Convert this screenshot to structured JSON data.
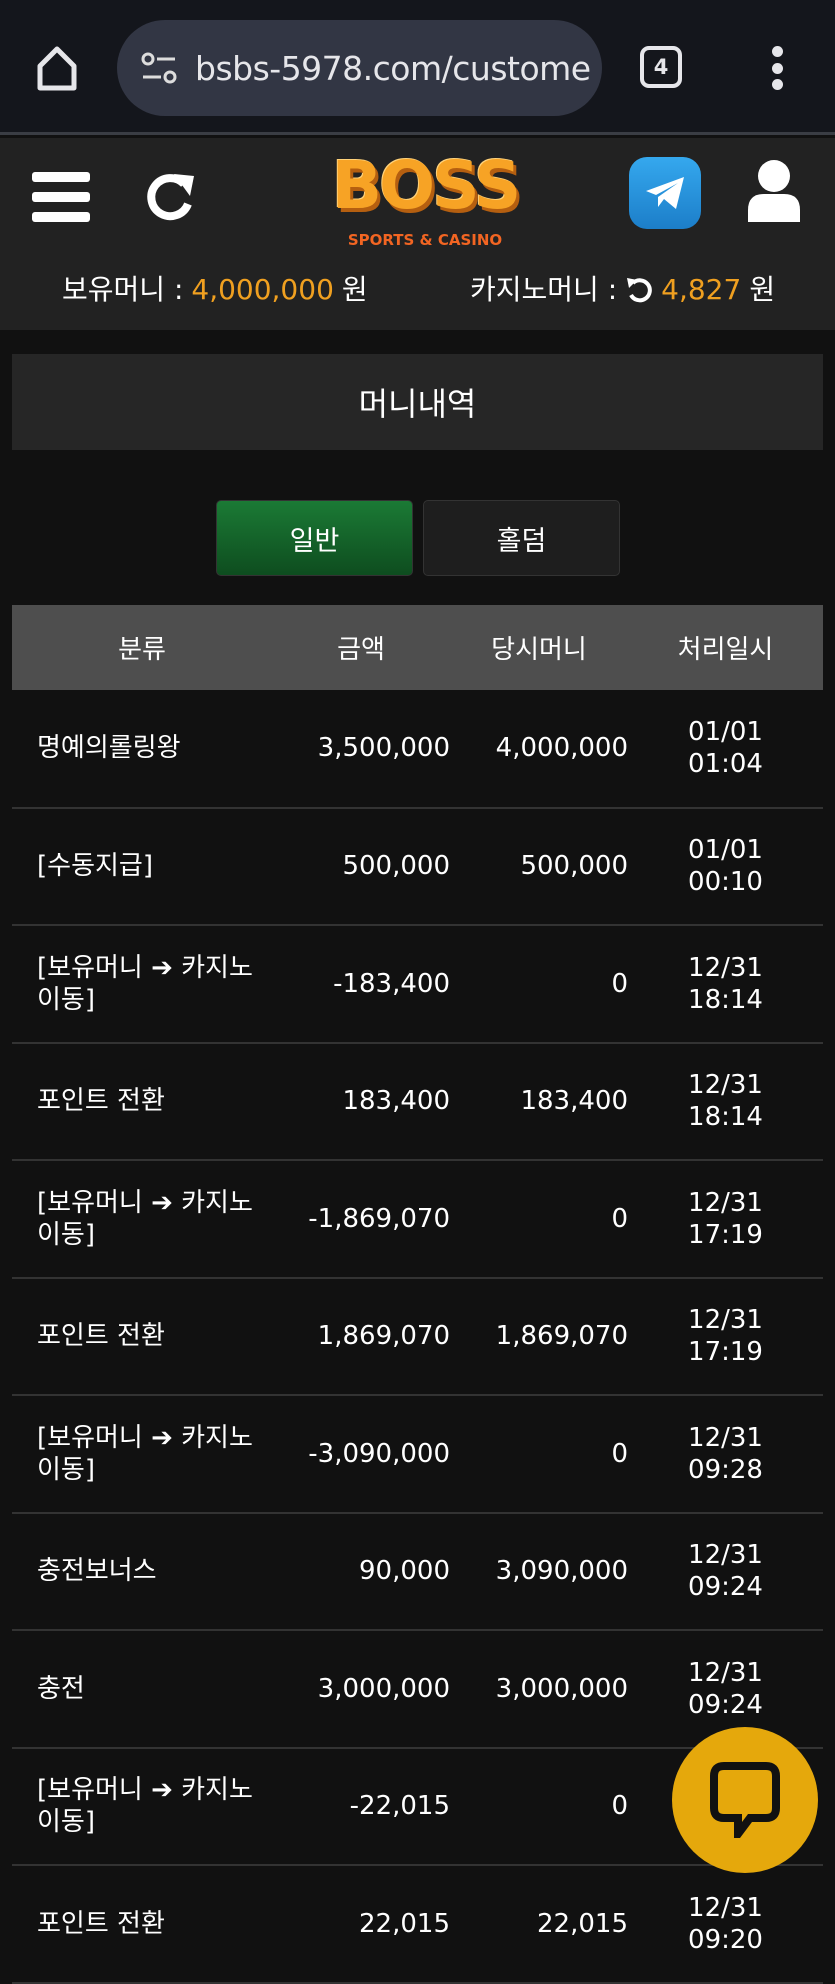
{
  "browser": {
    "url": "bsbs-5978.com/custome",
    "tab_count": "4"
  },
  "header": {
    "logo_text": "BOSS",
    "logo_sub": "SPORTS & CASINO",
    "hold_money_label": "보유머니 :",
    "hold_money_value": "4,000,000",
    "hold_money_unit": "원",
    "casino_money_label": "카지노머니 :",
    "casino_money_value": "4,827",
    "casino_money_unit": "원"
  },
  "page_title": "머니내역",
  "tabs": [
    {
      "label": "일반",
      "active": true
    },
    {
      "label": "홀덤",
      "active": false
    }
  ],
  "table": {
    "headers": [
      "분류",
      "금액",
      "당시머니",
      "처리일시"
    ],
    "rows": [
      [
        "명예의롤링왕",
        "3,500,000",
        "4,000,000",
        "01/01",
        "01:04"
      ],
      [
        "[수동지급]",
        "500,000",
        "500,000",
        "01/01",
        "00:10"
      ],
      [
        "[보유머니 ➔ 카지노 이동]",
        "-183,400",
        "0",
        "12/31",
        "18:14"
      ],
      [
        "포인트 전환",
        "183,400",
        "183,400",
        "12/31",
        "18:14"
      ],
      [
        "[보유머니 ➔ 카지노 이동]",
        "-1,869,070",
        "0",
        "12/31",
        "17:19"
      ],
      [
        "포인트 전환",
        "1,869,070",
        "1,869,070",
        "12/31",
        "17:19"
      ],
      [
        "[보유머니 ➔ 카지노 이동]",
        "-3,090,000",
        "0",
        "12/31",
        "09:28"
      ],
      [
        "충전보너스",
        "90,000",
        "3,090,000",
        "12/31",
        "09:24"
      ],
      [
        "충전",
        "3,000,000",
        "3,000,000",
        "12/31",
        "09:24"
      ],
      [
        "[보유머니 ➔ 카지노 이동]",
        "-22,015",
        "0",
        "",
        ""
      ],
      [
        "포인트 전환",
        "22,015",
        "22,015",
        "12/31",
        "09:20"
      ]
    ]
  },
  "colors": {
    "accent": "#f0a020",
    "active_tab": "#1b7a35",
    "chat_button": "#e5a80c",
    "telegram": "#2a96e0"
  }
}
